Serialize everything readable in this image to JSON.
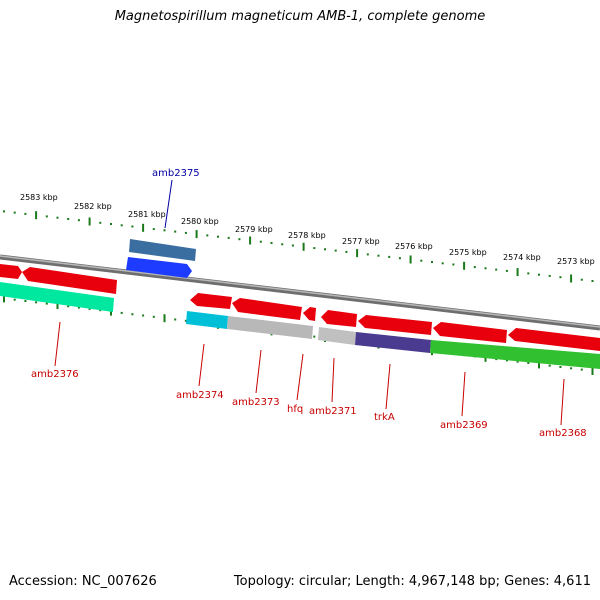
{
  "title": "Magnetospirillum magneticum AMB-1, complete genome",
  "footer": {
    "accession": "Accession: NC_007626",
    "summary": "Topology: circular; Length: 4,967,148 bp; Genes: 4,611"
  },
  "colors": {
    "tick": "#1a7a1a",
    "backbone": "#808080",
    "forward_gene": "#1e3cff",
    "reverse_gene": "#e8000d",
    "label_red": "#c80000",
    "label_blue": "#0000a0"
  },
  "scale": {
    "unit": "kbp",
    "ticks": [
      {
        "label": "2583 kbp"
      },
      {
        "label": "2582 kbp"
      },
      {
        "label": "2581 kbp"
      },
      {
        "label": "2580 kbp"
      },
      {
        "label": "2579 kbp"
      },
      {
        "label": "2578 kbp"
      },
      {
        "label": "2577 kbp"
      },
      {
        "label": "2576 kbp"
      },
      {
        "label": "2575 kbp"
      },
      {
        "label": "2574 kbp"
      },
      {
        "label": "2573 kbp"
      }
    ]
  },
  "genes": [
    {
      "name": "amb2376",
      "color": "#00e8a0"
    },
    {
      "name": "amb2375",
      "color": "#3a6ea0"
    },
    {
      "name": "amb2374",
      "color": "#00c0d8"
    },
    {
      "name": "amb2373",
      "color": "#b8b8b8"
    },
    {
      "name": "hfq",
      "color": "#c0c0c0"
    },
    {
      "name": "amb2371",
      "color": "#c0c0c0"
    },
    {
      "name": "trkA",
      "color": "#4a3a90"
    },
    {
      "name": "amb2369",
      "color": "#30c030"
    },
    {
      "name": "amb2368",
      "color": "#30c030"
    }
  ]
}
